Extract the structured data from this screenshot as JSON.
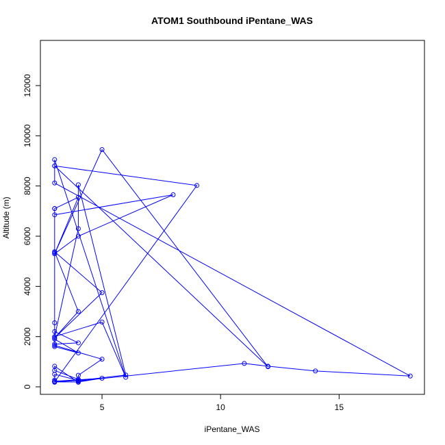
{
  "chart_data": {
    "type": "line",
    "title": "ATOM1 Southbound iPentane_WAS",
    "xlabel": "iPentane_WAS",
    "ylabel": "Altitude (m)",
    "xlim": [
      2.4,
      18.6
    ],
    "ylim": [
      -300,
      13800
    ],
    "xticks": [
      5,
      10,
      15
    ],
    "yticks": [
      0,
      2000,
      4000,
      6000,
      8000,
      10000,
      12000
    ],
    "grid": false,
    "legend": "none",
    "color": "#0000ff",
    "marker": "open-circle",
    "series": [
      {
        "x": [
          3,
          3,
          3,
          3,
          4,
          4,
          4,
          3,
          3,
          4,
          4,
          5,
          3,
          3,
          5,
          3,
          4,
          3,
          3,
          4,
          3,
          3,
          4,
          3,
          3,
          3,
          3,
          3,
          4,
          3,
          3,
          8,
          4,
          3,
          5,
          12,
          3,
          3,
          6,
          5,
          3,
          4,
          4,
          6,
          4,
          3,
          9,
          3,
          3,
          18,
          14,
          12,
          11,
          4,
          4,
          3,
          3,
          5,
          4,
          3
        ],
        "y": [
          180,
          200,
          270,
          500,
          250,
          230,
          300,
          650,
          820,
          180,
          460,
          1100,
          1650,
          1950,
          3750,
          5380,
          3000,
          1950,
          2200,
          1750,
          1700,
          1600,
          1350,
          1900,
          2550,
          7100,
          5350,
          5300,
          7550,
          7100,
          6850,
          7650,
          6000,
          5300,
          9450,
          800,
          8800,
          9050,
          380,
          2580,
          2000,
          6300,
          8050,
          470,
          250,
          200,
          8020,
          8800,
          8120,
          430,
          630,
          820,
          930,
          230,
          260,
          210,
          220,
          340,
          190,
          200
        ]
      }
    ]
  }
}
